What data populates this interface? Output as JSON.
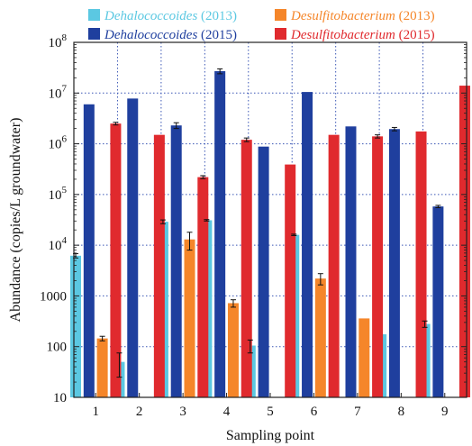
{
  "chart_data": {
    "type": "bar",
    "title": "",
    "xlabel": "Sampling point",
    "ylabel": "Abundance (copies/L groundwater)",
    "yscale": "log",
    "ylim": [
      10,
      100000000
    ],
    "y_tick_labels": [
      "10",
      "100",
      "1000",
      "10^4",
      "10^5",
      "10^6",
      "10^7",
      "10^8"
    ],
    "grid": "dotted",
    "legend_placement": "top",
    "categories": [
      "1",
      "2",
      "3",
      "4",
      "5",
      "6",
      "7",
      "8",
      "9"
    ],
    "series": [
      {
        "name": "Dehalococcoides",
        "year": "(2013)",
        "color": "#5bc8e2",
        "values": [
          6200,
          50,
          29000,
          31000,
          105,
          16000,
          null,
          175,
          280
        ],
        "errors": [
          600,
          25,
          2500,
          1000,
          30,
          500,
          null,
          null,
          40
        ]
      },
      {
        "name": "Dehalococcoides",
        "year": "(2015)",
        "color": "#1f3f9e",
        "values": [
          6000000,
          7800000,
          2300000,
          27000000,
          880000,
          10500000,
          2200000,
          1950000,
          58000
        ],
        "errors": [
          null,
          null,
          300000,
          3000000,
          null,
          null,
          null,
          150000,
          3000
        ]
      },
      {
        "name": "Desulfitobacterium",
        "year": "(2013)",
        "color": "#f5862a",
        "values": [
          145,
          null,
          13000,
          720,
          null,
          2200,
          360,
          null,
          null
        ],
        "errors": [
          15,
          null,
          5000,
          120,
          null,
          550,
          null,
          null,
          null
        ]
      },
      {
        "name": "Desulfitobacterium",
        "year": "(2015)",
        "color": "#e02a2e",
        "values": [
          2500000,
          1500000,
          220000,
          1200000,
          390000,
          1500000,
          1400000,
          1750000,
          14000000
        ],
        "errors": [
          150000,
          null,
          15000,
          100000,
          null,
          null,
          100000,
          null,
          null
        ]
      }
    ]
  }
}
